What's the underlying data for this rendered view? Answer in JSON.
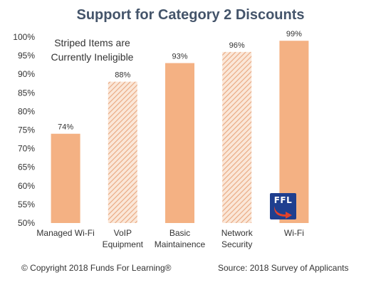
{
  "chart_data": {
    "type": "bar",
    "title": "Support for Category 2 Discounts",
    "categories": [
      [
        "Managed Wi-Fi"
      ],
      [
        "VoIP",
        "Equipment"
      ],
      [
        "Basic",
        "Maintainence"
      ],
      [
        "Network",
        "Security"
      ],
      [
        "Wi-Fi"
      ]
    ],
    "values": [
      74,
      88,
      93,
      96,
      99
    ],
    "value_labels": [
      "74%",
      "88%",
      "93%",
      "96%",
      "99%"
    ],
    "striped": [
      false,
      true,
      false,
      true,
      false
    ],
    "ylim": [
      50,
      100
    ],
    "yticks": [
      50,
      55,
      60,
      65,
      70,
      75,
      80,
      85,
      90,
      95,
      100
    ],
    "ytick_suffix": "%",
    "grid": false,
    "bar_color": "#f4b183",
    "annotation": [
      "Striped Items are",
      "Currently Ineligible"
    ]
  },
  "footer": {
    "copyright": "© Copyright 2018 Funds For Learning®",
    "source": "Source: 2018 Survey of Applicants"
  },
  "logo": {
    "text": "FFL",
    "icon": "ffl-logo"
  },
  "colors": {
    "title": "#44546a",
    "bar": "#f4b183",
    "logo_bg": "#1f3f8f",
    "logo_arrow": "#e2422b"
  }
}
